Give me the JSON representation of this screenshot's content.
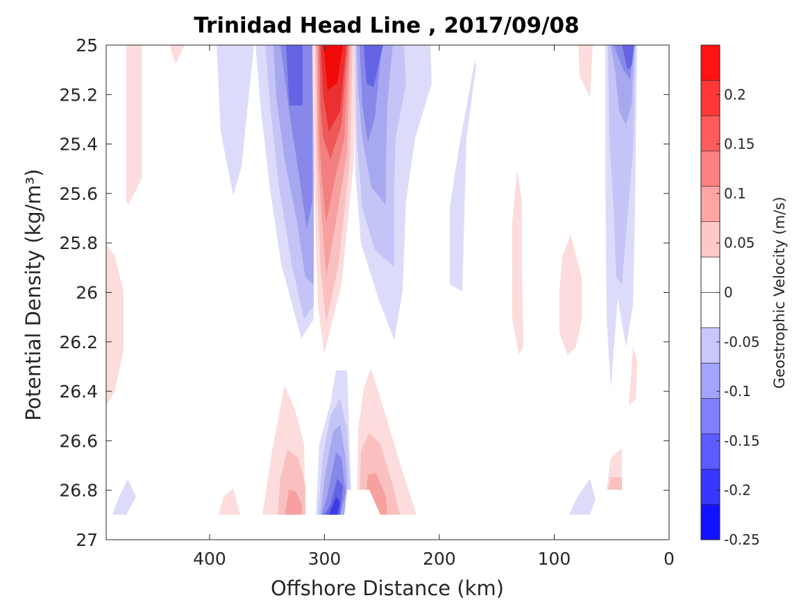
{
  "chart_data": {
    "type": "heatmap",
    "title": "Trinidad Head Line , 2017/09/08",
    "xlabel": "Offshore Distance (km)",
    "ylabel": "Potential Density (kg/m³)",
    "xlim": [
      490,
      0
    ],
    "ylim": [
      25,
      27
    ],
    "x_ticks": [
      "400",
      "300",
      "200",
      "100",
      "0"
    ],
    "y_ticks": [
      "25",
      "25.2",
      "25.4",
      "25.6",
      "25.8",
      "26",
      "26.2",
      "26.4",
      "26.6",
      "26.8",
      "27"
    ],
    "y_reversed": true,
    "colorbar": {
      "label": "Geostrophic Velocity (m/s)",
      "ticks": [
        "0.2",
        "0.15",
        "0.1",
        "0.05",
        "0",
        "-0.05",
        "-0.1",
        "-0.15",
        "-0.2",
        "-0.25"
      ],
      "range": [
        -0.25,
        0.25
      ],
      "levels": 14,
      "colormap": "blue-white-red"
    },
    "features": [
      {
        "label": "strong northward jet",
        "distance_km": 292,
        "density_range": [
          25.0,
          26.25
        ],
        "peak_velocity": 0.25
      },
      {
        "label": "southward flow west of jet",
        "distance_km": 330,
        "density_range": [
          25.0,
          26.2
        ],
        "peak_velocity": -0.14
      },
      {
        "label": "southward flow east of jet",
        "distance_km": 255,
        "density_range": [
          25.0,
          26.2
        ],
        "peak_velocity": -0.12
      },
      {
        "label": "nearshore southward flow",
        "distance_km": 40,
        "density_range": [
          25.0,
          26.4
        ],
        "peak_velocity": -0.12
      },
      {
        "label": "deep southward core",
        "distance_km": 290,
        "density_range": [
          26.3,
          26.9
        ],
        "peak_velocity": -0.18
      },
      {
        "label": "deep northward flow east",
        "distance_km": 255,
        "density_range": [
          26.3,
          26.9
        ],
        "peak_velocity": 0.09
      },
      {
        "label": "deep northward flow west",
        "distance_km": 330,
        "density_range": [
          26.4,
          26.9
        ],
        "peak_velocity": 0.08
      }
    ]
  }
}
